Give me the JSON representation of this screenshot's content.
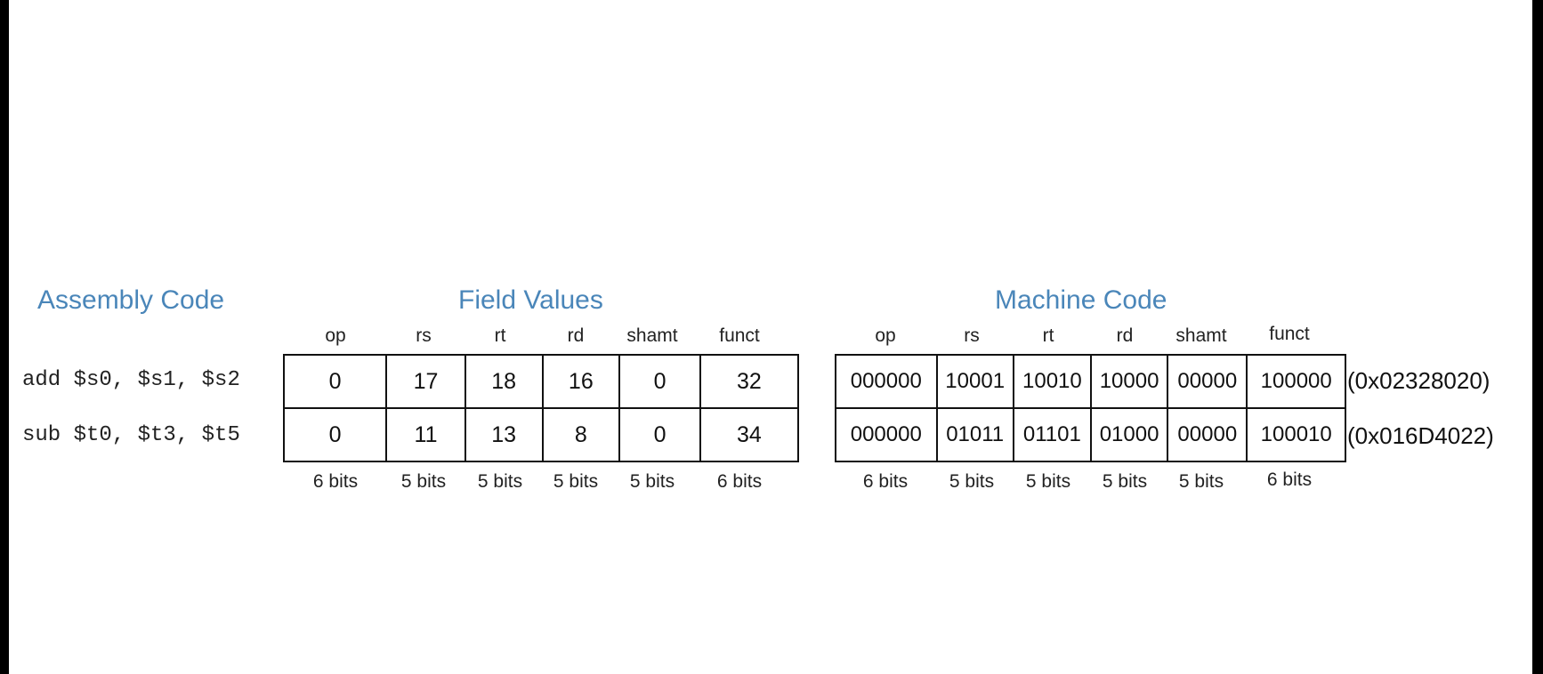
{
  "headings": {
    "assembly": "Assembly Code",
    "fields": "Field Values",
    "machine": "Machine Code"
  },
  "field_labels": [
    "op",
    "rs",
    "rt",
    "rd",
    "shamt",
    "funct"
  ],
  "bit_widths": [
    "6 bits",
    "5 bits",
    "5 bits",
    "5 bits",
    "5 bits",
    "6 bits"
  ],
  "rows": [
    {
      "assembly": "add $s0, $s1, $s2",
      "fields": [
        "0",
        "17",
        "18",
        "16",
        "0",
        "32"
      ],
      "machine": [
        "000000",
        "10001",
        "10010",
        "10000",
        "00000",
        "100000"
      ],
      "hex": "(0x02328020)"
    },
    {
      "assembly": "sub $t0, $t3, $t5",
      "fields": [
        "0",
        "11",
        "13",
        "8",
        "0",
        "34"
      ],
      "machine": [
        "000000",
        "01011",
        "01101",
        "01000",
        "00000",
        "100010"
      ],
      "hex": "(0x016D4022)"
    }
  ],
  "colors": {
    "heading": "#4a86b9",
    "background": "#ffffff",
    "border": "#000000"
  }
}
